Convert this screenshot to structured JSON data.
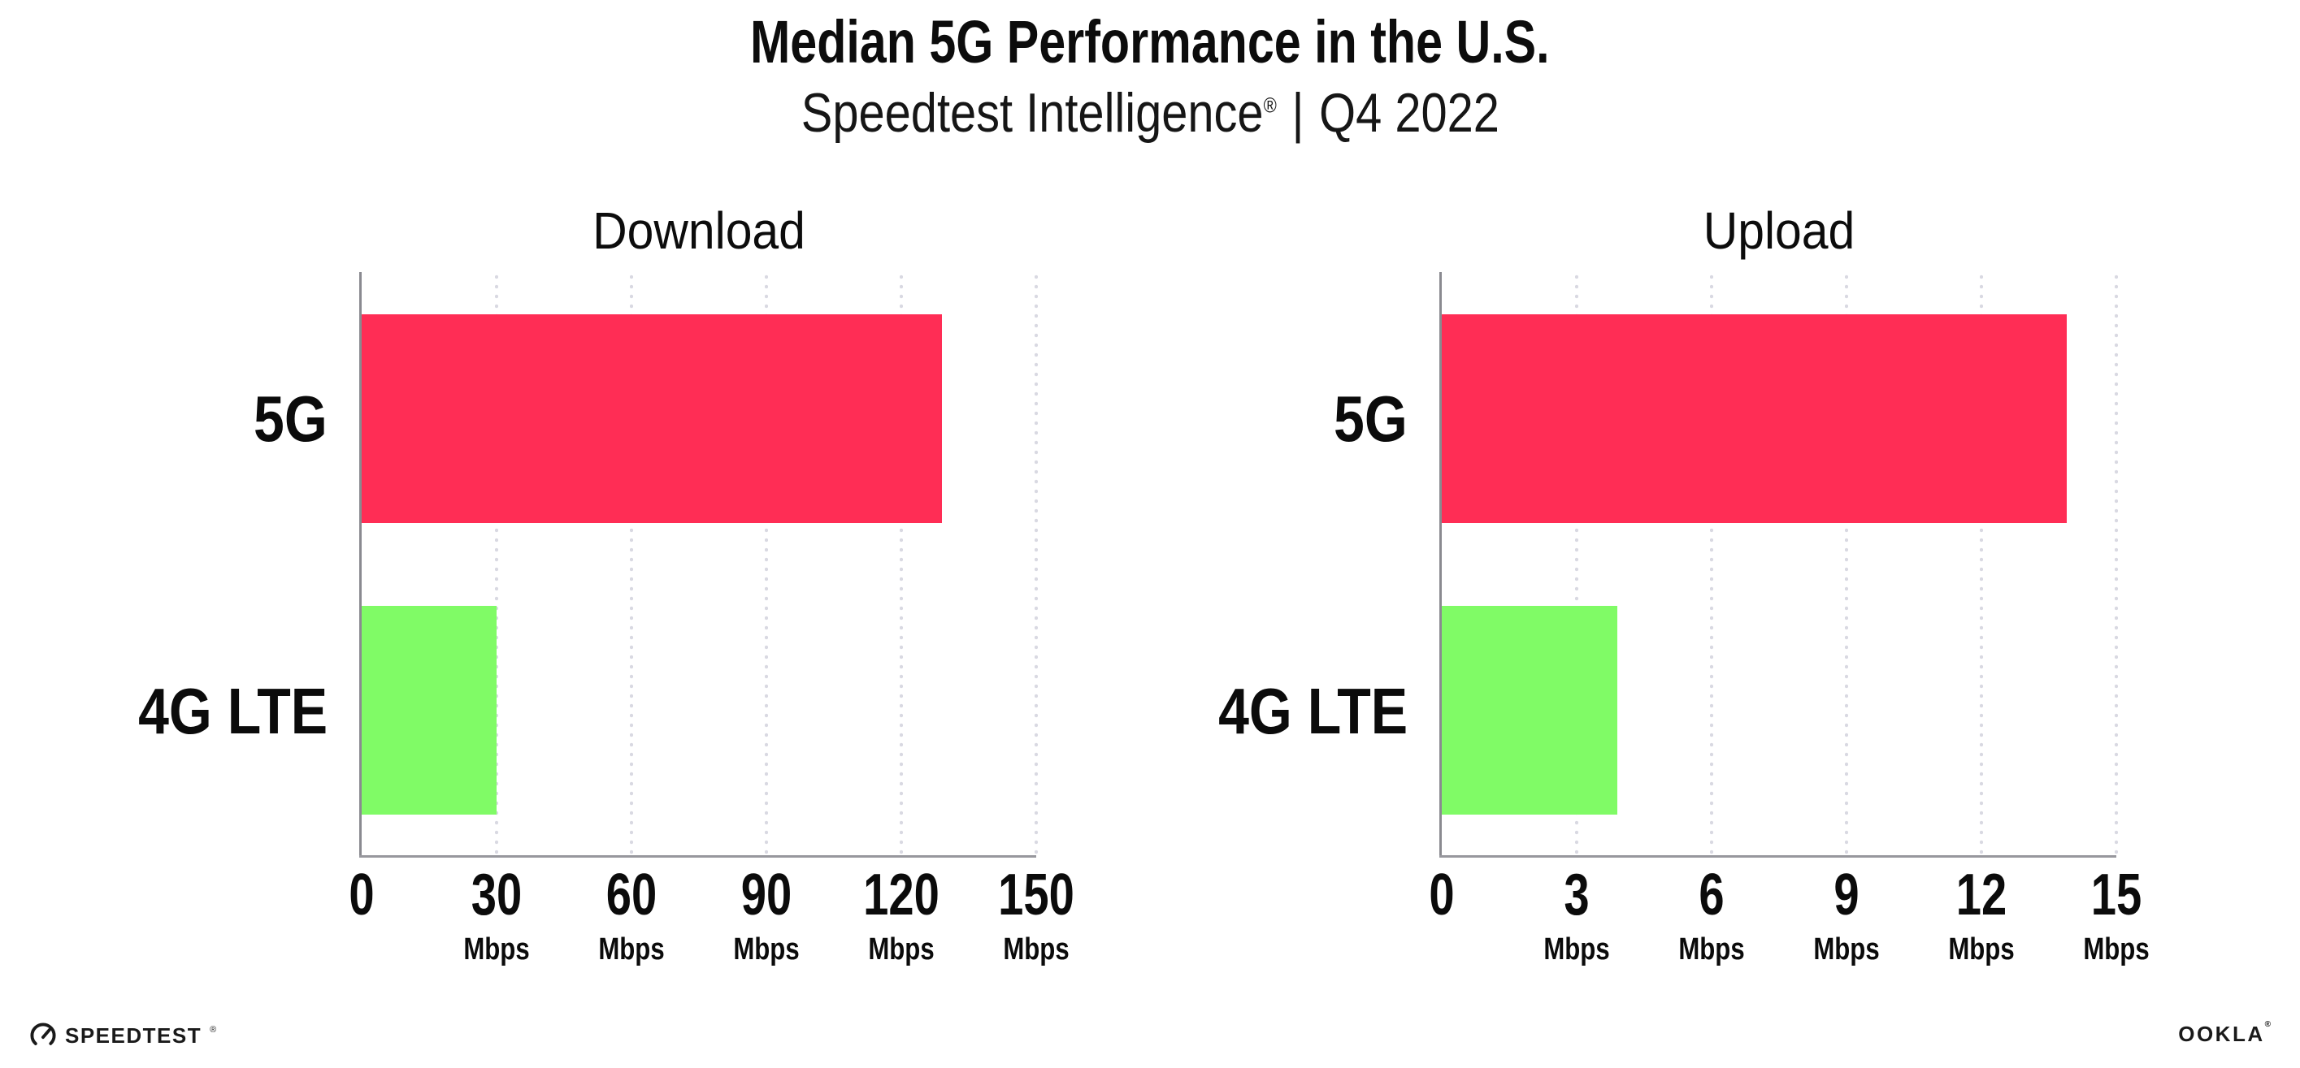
{
  "header": {
    "title": "Median 5G Performance in the U.S.",
    "subtitle_brand": "Speedtest Intelligence",
    "subtitle_reg_mark": "®",
    "subtitle_separator": "|",
    "subtitle_period": "Q4 2022"
  },
  "chart_data": [
    {
      "type": "bar",
      "orientation": "horizontal",
      "title": "Download",
      "categories": [
        "5G",
        "4G LTE"
      ],
      "values": [
        129,
        30
      ],
      "unit": "Mbps",
      "xlim": [
        0,
        150
      ],
      "xticks": [
        0,
        30,
        60,
        90,
        120,
        150
      ],
      "bar_colors": [
        "#FF2D55",
        "#80FB66"
      ],
      "grid": "dotted-vertical",
      "legend": "none"
    },
    {
      "type": "bar",
      "orientation": "horizontal",
      "title": "Upload",
      "categories": [
        "5G",
        "4G LTE"
      ],
      "values": [
        13.9,
        3.9
      ],
      "unit": "Mbps",
      "xlim": [
        0,
        15
      ],
      "xticks": [
        0,
        3,
        6,
        9,
        12,
        15
      ],
      "bar_colors": [
        "#FF2D55",
        "#80FB66"
      ],
      "grid": "dotted-vertical",
      "legend": "none"
    }
  ],
  "footer": {
    "speedtest_label": "SPEEDTEST",
    "speedtest_reg_mark": "®",
    "speedtest_icon": "speedtest-gauge-icon",
    "ookla_label": "OOKLA",
    "ookla_reg_mark": "®"
  },
  "colors": {
    "background": "#FFFFFF",
    "bar_5g": "#FF2D55",
    "bar_4g_lte": "#80FB66",
    "axis_line": "#8A8A90",
    "gridline_dots": "#D9D9E2",
    "text": "#0B0B0B"
  }
}
